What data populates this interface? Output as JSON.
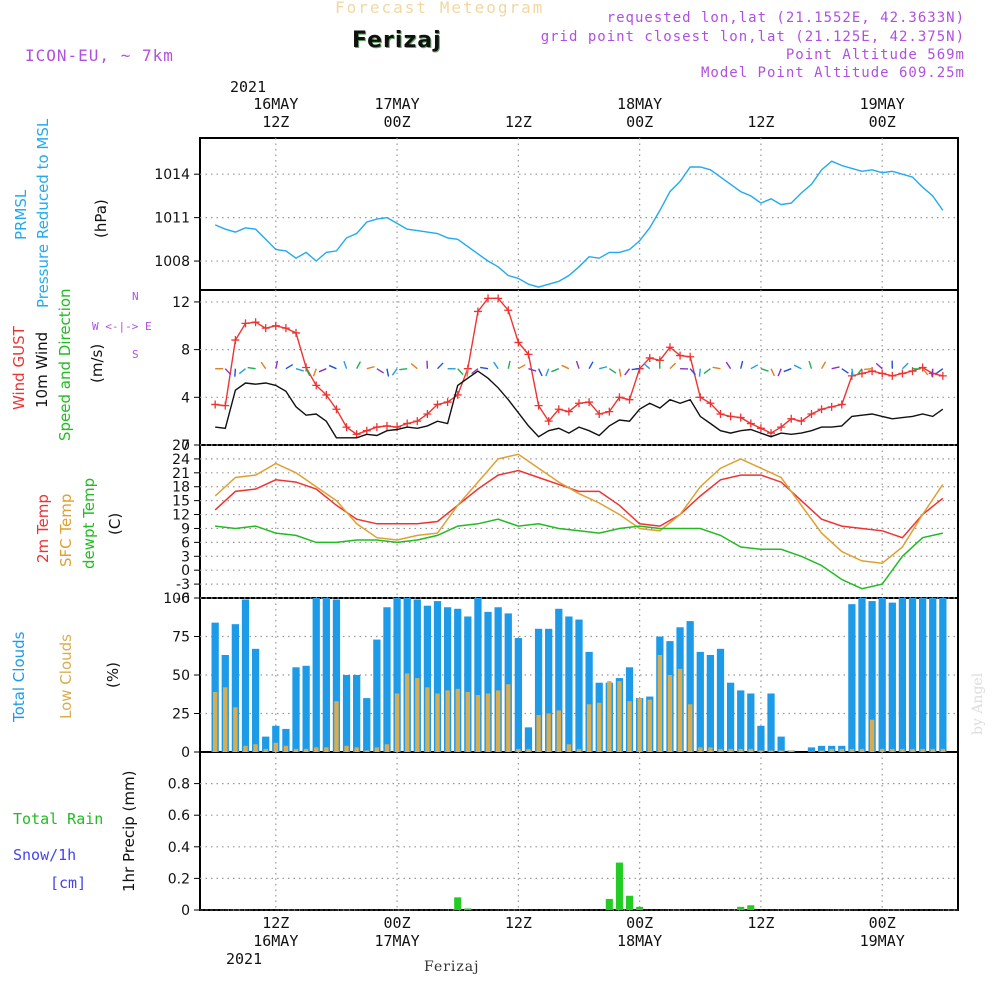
{
  "header": {
    "subtitle": "Forecast Meteogram",
    "city": "Ferizaj",
    "model": "ICON-EU, ~ 7km",
    "requested": "requested lon,lat (21.1552E, 42.3633N)",
    "grid": "grid point closest lon,lat (21.125E, 42.375N)",
    "point_alt": "Point Altitude 569m",
    "model_alt": "Model Point Altitude 609.25m",
    "watermark": "by Angel",
    "footer": "Ferizaj"
  },
  "time_axis": {
    "year_top": "2021",
    "year_bottom": "2021",
    "ticks": [
      {
        "hour": "12Z",
        "date": "16MAY",
        "t": 12
      },
      {
        "hour": "00Z",
        "date": "17MAY",
        "t": 24
      },
      {
        "hour": "12Z",
        "date": "",
        "t": 36
      },
      {
        "hour": "00Z",
        "date": "18MAY",
        "t": 48
      },
      {
        "hour": "12Z",
        "date": "",
        "t": 60
      },
      {
        "hour": "00Z",
        "date": "19MAY",
        "t": 72
      }
    ]
  },
  "panel_labels": {
    "pressure": {
      "line1": "PRMSL",
      "line2": "Pressure Reduced to MSL",
      "unit": "(hPa)"
    },
    "wind": {
      "gust": "Wind GUST",
      "wind10": "10m Wind",
      "speed": "Speed and Direction",
      "unit": "(m/s)",
      "compass_n": "N",
      "compass_s": "S",
      "compass_we": "W <-|-> E"
    },
    "temp": {
      "t2m": "2m Temp",
      "sfc": "SFC Temp",
      "dew": "dewpt Temp",
      "unit": "(C)"
    },
    "cloud": {
      "total": "Total Clouds",
      "low": "Low Clouds",
      "unit": "(%)"
    },
    "precip": {
      "unit": "1hr Precip (mm)",
      "rain": "Total  Rain",
      "snow": "Snow/1h",
      "snow_unit": "[cm]"
    }
  },
  "colors": {
    "pressure": "#22aaee",
    "gust": "#ee3333",
    "wind": "#111111",
    "t2m": "#ee3333",
    "sfc": "#e0a030",
    "dew": "#22bb22",
    "total_cloud": "#1e9be8",
    "low_cloud": "#d9ac50",
    "rain": "#22cc22",
    "snow": "#4444ee"
  },
  "chart_data": [
    {
      "type": "line",
      "name": "pressure",
      "x_unit": "hours since 2021-05-16 00Z",
      "ylim": [
        1006,
        1016.5
      ],
      "yticks": [
        1008,
        1011,
        1014
      ],
      "x": [
        6,
        7,
        8,
        9,
        10,
        11,
        12,
        13,
        14,
        15,
        16,
        17,
        18,
        19,
        20,
        21,
        22,
        23,
        24,
        25,
        26,
        27,
        28,
        29,
        30,
        31,
        32,
        33,
        34,
        35,
        36,
        37,
        38,
        39,
        40,
        41,
        42,
        43,
        44,
        45,
        46,
        47,
        48,
        49,
        50,
        51,
        52,
        53,
        54,
        55,
        56,
        57,
        58,
        59,
        60,
        61,
        62,
        63,
        64,
        65,
        66,
        67,
        68,
        69,
        70,
        71,
        72,
        73,
        74,
        75,
        76,
        77,
        78
      ],
      "values": [
        1010.5,
        1010.2,
        1010.0,
        1010.3,
        1010.2,
        1009.5,
        1008.8,
        1008.7,
        1008.2,
        1008.6,
        1008.0,
        1008.6,
        1008.7,
        1009.6,
        1009.9,
        1010.7,
        1010.9,
        1011.0,
        1010.6,
        1010.2,
        1010.1,
        1010.0,
        1009.9,
        1009.6,
        1009.5,
        1009.0,
        1008.5,
        1008.0,
        1007.6,
        1007.0,
        1006.8,
        1006.4,
        1006.2,
        1006.4,
        1006.6,
        1007.0,
        1007.6,
        1008.3,
        1008.2,
        1008.6,
        1008.6,
        1008.8,
        1009.4,
        1010.3,
        1011.5,
        1012.8,
        1013.5,
        1014.5,
        1014.5,
        1014.3,
        1013.8,
        1013.3,
        1012.8,
        1012.5,
        1012.0,
        1012.3,
        1011.9,
        1012.0,
        1012.7,
        1013.3,
        1014.3,
        1014.9,
        1014.6,
        1014.4,
        1014.2,
        1014.3,
        1014.1,
        1014.2,
        1014.0,
        1013.8,
        1013.1,
        1012.5,
        1011.5
      ]
    },
    {
      "type": "line",
      "name": "wind",
      "x_unit": "hours since 2021-05-16 00Z",
      "ylim": [
        0,
        13
      ],
      "yticks": [
        0,
        4,
        8,
        12
      ],
      "series": [
        {
          "name": "Wind GUST",
          "x": [
            6,
            7,
            8,
            9,
            10,
            11,
            12,
            13,
            14,
            15,
            16,
            17,
            18,
            19,
            20,
            21,
            22,
            23,
            24,
            25,
            26,
            27,
            28,
            29,
            30,
            31,
            32,
            33,
            34,
            35,
            36,
            37,
            38,
            39,
            40,
            41,
            42,
            43,
            44,
            45,
            46,
            47,
            48,
            49,
            50,
            51,
            52,
            53,
            54,
            55,
            56,
            57,
            58,
            59,
            60,
            61,
            62,
            63,
            64,
            65,
            66,
            67,
            68,
            69,
            70,
            71,
            72,
            73,
            74,
            75,
            76,
            77,
            78
          ],
          "values": [
            3.4,
            3.3,
            8.8,
            10.2,
            10.3,
            9.8,
            10.0,
            9.8,
            9.4,
            6.5,
            5.0,
            4.2,
            3.0,
            1.5,
            0.9,
            1.2,
            1.5,
            1.6,
            1.5,
            1.8,
            2.0,
            2.6,
            3.4,
            3.6,
            4.2,
            6.4,
            11.2,
            12.3,
            12.3,
            11.3,
            8.6,
            7.6,
            3.3,
            2.0,
            3.0,
            2.8,
            3.5,
            3.6,
            2.6,
            2.8,
            4.0,
            3.8,
            6.4,
            7.3,
            7.1,
            8.2,
            7.5,
            7.4,
            4.0,
            3.5,
            2.6,
            2.4,
            2.3,
            1.8,
            1.4,
            1.0,
            1.5,
            2.2,
            2.0,
            2.6,
            3.0,
            3.2,
            3.4,
            5.8,
            6.0,
            6.2,
            6.0,
            5.8,
            6.0,
            6.2,
            6.5,
            6.0,
            5.8
          ]
        },
        {
          "name": "10m Wind",
          "x": [
            6,
            7,
            8,
            9,
            10,
            11,
            12,
            13,
            14,
            15,
            16,
            17,
            18,
            19,
            20,
            21,
            22,
            23,
            24,
            25,
            26,
            27,
            28,
            29,
            30,
            31,
            32,
            33,
            34,
            35,
            36,
            37,
            38,
            39,
            40,
            41,
            42,
            43,
            44,
            45,
            46,
            47,
            48,
            49,
            50,
            51,
            52,
            53,
            54,
            55,
            56,
            57,
            58,
            59,
            60,
            61,
            62,
            63,
            64,
            65,
            66,
            67,
            68,
            69,
            70,
            71,
            72,
            73,
            74,
            75,
            76,
            77,
            78
          ],
          "values": [
            1.5,
            1.4,
            4.6,
            5.2,
            5.1,
            5.2,
            5.0,
            4.5,
            3.2,
            2.5,
            2.6,
            2.0,
            0.6,
            0.6,
            0.6,
            0.9,
            0.8,
            1.2,
            1.3,
            1.5,
            1.4,
            1.6,
            2.0,
            1.8,
            5.0,
            5.6,
            6.2,
            5.6,
            4.8,
            3.8,
            2.7,
            1.6,
            0.7,
            1.2,
            1.4,
            1.0,
            1.5,
            1.2,
            0.8,
            1.6,
            2.1,
            2.0,
            3.0,
            3.5,
            3.1,
            3.8,
            3.5,
            3.8,
            2.4,
            1.8,
            1.2,
            1.0,
            1.2,
            1.3,
            1.0,
            0.7,
            1.0,
            0.9,
            1.0,
            1.2,
            1.5,
            1.5,
            1.6,
            2.4,
            2.5,
            2.6,
            2.4,
            2.2,
            2.3,
            2.4,
            2.6,
            2.4,
            3.0
          ]
        }
      ]
    },
    {
      "type": "line",
      "name": "temperature",
      "x_unit": "hours since 2021-05-16 00Z",
      "ylim": [
        -6,
        27
      ],
      "yticks": [
        -6,
        -3,
        0,
        3,
        6,
        9,
        12,
        15,
        18,
        21,
        24,
        27
      ],
      "series": [
        {
          "name": "2m Temp",
          "x": [
            6,
            8,
            10,
            12,
            14,
            16,
            18,
            20,
            22,
            24,
            26,
            28,
            30,
            32,
            34,
            36,
            38,
            40,
            42,
            44,
            46,
            48,
            50,
            52,
            54,
            56,
            58,
            60,
            62,
            64,
            66,
            68,
            70,
            72,
            74,
            76,
            78
          ],
          "values": [
            13,
            17,
            17.5,
            19.5,
            19,
            17.5,
            14,
            11,
            10,
            10,
            10,
            10.5,
            14,
            17.5,
            20.5,
            21.5,
            20,
            18.5,
            17,
            17,
            14,
            10,
            9.5,
            12,
            16,
            19.5,
            20.5,
            20.5,
            19,
            15,
            11,
            9.5,
            9,
            8.5,
            7,
            12,
            15.5
          ]
        },
        {
          "name": "SFC Temp",
          "x": [
            6,
            8,
            10,
            12,
            14,
            16,
            18,
            20,
            22,
            24,
            26,
            28,
            30,
            32,
            34,
            36,
            38,
            40,
            42,
            44,
            46,
            48,
            50,
            52,
            54,
            56,
            58,
            60,
            62,
            64,
            66,
            68,
            70,
            72,
            74,
            76,
            78
          ],
          "values": [
            16,
            20,
            20.5,
            23,
            21,
            18,
            15,
            10,
            7,
            6.5,
            7.5,
            8,
            14,
            19,
            24,
            25,
            22,
            19,
            16.5,
            14.5,
            12,
            9,
            8.5,
            12,
            18,
            22,
            24,
            22,
            20,
            14,
            8,
            4,
            2,
            1.5,
            5,
            12,
            18.5
          ]
        },
        {
          "name": "dewpt Temp",
          "x": [
            6,
            8,
            10,
            12,
            14,
            16,
            18,
            20,
            22,
            24,
            26,
            28,
            30,
            32,
            34,
            36,
            38,
            40,
            42,
            44,
            46,
            48,
            50,
            52,
            54,
            56,
            58,
            60,
            62,
            64,
            66,
            68,
            70,
            72,
            74,
            76,
            78
          ],
          "values": [
            9.5,
            9,
            9.5,
            8,
            7.5,
            6,
            6,
            6.5,
            6.5,
            6,
            6.5,
            7.5,
            9.5,
            10,
            11,
            9.5,
            10,
            9,
            8.5,
            8,
            9,
            9.5,
            9,
            9,
            9,
            7.5,
            5,
            4.5,
            4.5,
            3,
            1,
            -2,
            -4,
            -3,
            3,
            7,
            8
          ]
        }
      ]
    },
    {
      "type": "bar",
      "name": "clouds",
      "x_unit": "hours since 2021-05-16 00Z",
      "ylim": [
        0,
        100
      ],
      "yticks": [
        0,
        25,
        50,
        75,
        100
      ],
      "x": [
        6,
        7,
        8,
        9,
        10,
        11,
        12,
        13,
        14,
        15,
        16,
        17,
        18,
        19,
        20,
        21,
        22,
        23,
        24,
        25,
        26,
        27,
        28,
        29,
        30,
        31,
        32,
        33,
        34,
        35,
        36,
        37,
        38,
        39,
        40,
        41,
        42,
        43,
        44,
        45,
        46,
        47,
        48,
        49,
        50,
        51,
        52,
        53,
        54,
        55,
        56,
        57,
        58,
        59,
        60,
        61,
        62,
        63,
        64,
        65,
        66,
        67,
        68,
        69,
        70,
        71,
        72,
        73,
        74,
        75,
        76,
        77,
        78
      ],
      "series": [
        {
          "name": "Total Clouds",
          "values": [
            84,
            63,
            83,
            99,
            67,
            10,
            17,
            15,
            55,
            56,
            100,
            100,
            99,
            50,
            50,
            35,
            73,
            94,
            100,
            100,
            99,
            95,
            98,
            94,
            93,
            88,
            100,
            91,
            94,
            90,
            74,
            16,
            80,
            80,
            93,
            88,
            86,
            65,
            45,
            45,
            48,
            55,
            35,
            36,
            75,
            72,
            81,
            85,
            65,
            63,
            67,
            45,
            40,
            38,
            17,
            38,
            10,
            1,
            0,
            3,
            4,
            4,
            4,
            96,
            100,
            98,
            100,
            97,
            100,
            100,
            100,
            100,
            100
          ],
          "low": [
            39,
            42,
            29,
            4,
            5,
            2,
            6,
            4,
            2,
            2,
            3,
            3,
            33,
            4,
            3,
            1,
            3,
            5,
            38,
            51,
            48,
            42,
            38,
            40,
            41,
            39,
            37,
            38,
            40,
            44,
            2,
            2,
            24,
            25,
            27,
            5,
            2,
            31,
            32,
            46,
            46,
            33,
            35,
            34,
            63,
            50,
            54,
            31,
            3,
            3,
            2,
            2,
            2,
            2,
            1,
            1,
            1,
            1,
            0,
            0,
            1,
            2,
            2,
            2,
            2,
            21,
            2,
            2,
            2,
            2,
            2,
            2,
            2
          ]
        }
      ]
    },
    {
      "type": "bar",
      "name": "precipitation",
      "x_unit": "hours since 2021-05-16 00Z",
      "ylim": [
        0,
        1
      ],
      "yticks": [
        0,
        0.2,
        0.4,
        0.6,
        0.8
      ],
      "x": [
        30,
        31,
        32,
        33,
        45,
        46,
        47,
        48,
        58,
        59,
        60
      ],
      "series": [
        {
          "name": "Total Rain",
          "values": [
            0.08,
            0.01,
            0,
            0,
            0.07,
            0.3,
            0.09,
            0.02,
            0.02,
            0.03,
            0
          ]
        }
      ]
    }
  ]
}
